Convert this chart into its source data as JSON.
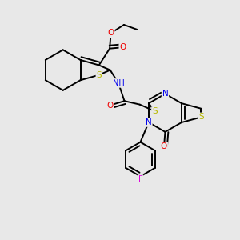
{
  "background_color": "#e8e8e8",
  "bond_color": "#000000",
  "atom_colors": {
    "S": "#b8b800",
    "N": "#0000ee",
    "O": "#ee0000",
    "F": "#dd00dd",
    "C": "#000000",
    "H": "#555555"
  },
  "figsize": [
    3.0,
    3.0
  ],
  "dpi": 100,
  "lw": 1.4
}
